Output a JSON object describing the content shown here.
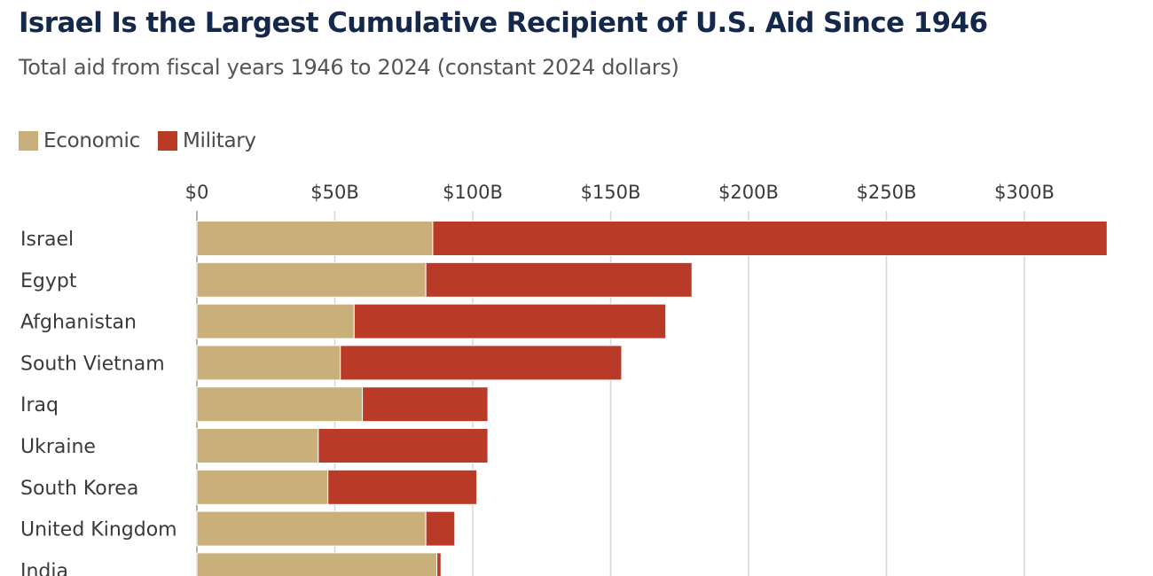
{
  "chart_data": {
    "type": "bar",
    "orientation": "horizontal",
    "stacked": true,
    "title": "Israel Is the Largest Cumulative Recipient of U.S. Aid Since 1946",
    "subtitle": "Total aid from fiscal years 1946 to 2024 (constant 2024 dollars)",
    "xlabel": "",
    "ylabel": "",
    "xlim": [
      0,
      330
    ],
    "x_ticks": [
      0,
      50,
      100,
      150,
      200,
      250,
      300
    ],
    "x_tick_labels": [
      "$0",
      "$50B",
      "$100B",
      "$150B",
      "$200B",
      "$250B",
      "$300B"
    ],
    "x_axis_position": "top",
    "grid": true,
    "legend_position": "top-left",
    "categories": [
      "Israel",
      "Egypt",
      "Afghanistan",
      "South Vietnam",
      "Iraq",
      "Ukraine",
      "South Korea",
      "United Kingdom",
      "India"
    ],
    "series": [
      {
        "name": "Economic",
        "color": "#c9b07a",
        "values": [
          85.5,
          83,
          57,
          52,
          60,
          44,
          47.5,
          83,
          87
        ]
      },
      {
        "name": "Military",
        "color": "#b93a26",
        "values": [
          244.5,
          96.5,
          113,
          102,
          45.5,
          61.5,
          54,
          10.5,
          1.5
        ]
      }
    ]
  }
}
